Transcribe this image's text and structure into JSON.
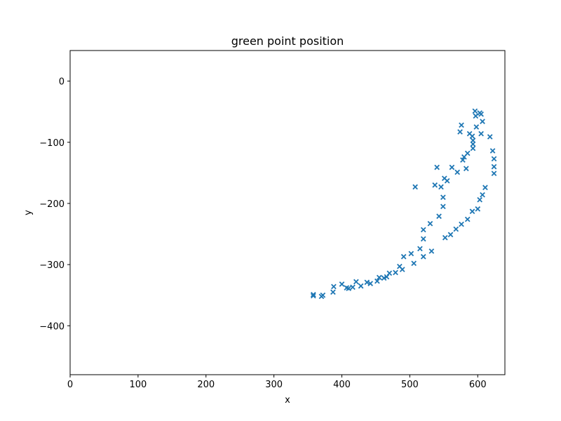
{
  "chart_data": {
    "type": "scatter",
    "title": "green point position",
    "xlabel": "x",
    "ylabel": "y",
    "xlim": [
      0,
      640
    ],
    "ylim": [
      -480,
      50
    ],
    "xticks": [
      0,
      100,
      200,
      300,
      400,
      500,
      600
    ],
    "yticks": [
      0,
      -100,
      -200,
      -300,
      -400
    ],
    "grid": false,
    "marker": "x",
    "color": "#1f77b4",
    "series": [
      {
        "points": [
          [
            358,
            -351
          ],
          [
            358,
            -349
          ],
          [
            370,
            -352
          ],
          [
            372,
            -350
          ],
          [
            387,
            -345
          ],
          [
            388,
            -336
          ],
          [
            400,
            -332
          ],
          [
            407,
            -338
          ],
          [
            410,
            -339
          ],
          [
            416,
            -337
          ],
          [
            421,
            -328
          ],
          [
            428,
            -335
          ],
          [
            437,
            -329
          ],
          [
            442,
            -331
          ],
          [
            452,
            -327
          ],
          [
            455,
            -321
          ],
          [
            462,
            -322
          ],
          [
            466,
            -320
          ],
          [
            470,
            -314
          ],
          [
            479,
            -313
          ],
          [
            485,
            -303
          ],
          [
            489,
            -308
          ],
          [
            491,
            -287
          ],
          [
            502,
            -282
          ],
          [
            506,
            -298
          ],
          [
            508,
            -173
          ],
          [
            515,
            -274
          ],
          [
            520,
            -287
          ],
          [
            520,
            -258
          ],
          [
            520,
            -243
          ],
          [
            530,
            -233
          ],
          [
            532,
            -278
          ],
          [
            537,
            -170
          ],
          [
            540,
            -141
          ],
          [
            543,
            -221
          ],
          [
            546,
            -173
          ],
          [
            549,
            -205
          ],
          [
            549,
            -190
          ],
          [
            551,
            -159
          ],
          [
            552,
            -256
          ],
          [
            555,
            -163
          ],
          [
            560,
            -251
          ],
          [
            562,
            -141
          ],
          [
            568,
            -242
          ],
          [
            570,
            -149
          ],
          [
            576,
            -234
          ],
          [
            574,
            -83
          ],
          [
            576,
            -72
          ],
          [
            578,
            -129
          ],
          [
            580,
            -124
          ],
          [
            583,
            -143
          ],
          [
            585,
            -118
          ],
          [
            585,
            -226
          ],
          [
            588,
            -86
          ],
          [
            592,
            -213
          ],
          [
            592,
            -90
          ],
          [
            593,
            -97
          ],
          [
            593,
            -103
          ],
          [
            593,
            -110
          ],
          [
            596,
            -49
          ],
          [
            597,
            -57
          ],
          [
            598,
            -75
          ],
          [
            600,
            -209
          ],
          [
            603,
            -194
          ],
          [
            603,
            -52
          ],
          [
            605,
            -54
          ],
          [
            605,
            -86
          ],
          [
            607,
            -186
          ],
          [
            607,
            -66
          ],
          [
            611,
            -174
          ],
          [
            618,
            -91
          ],
          [
            622,
            -114
          ],
          [
            624,
            -127
          ],
          [
            624,
            -140
          ],
          [
            624,
            -151
          ]
        ]
      }
    ]
  }
}
